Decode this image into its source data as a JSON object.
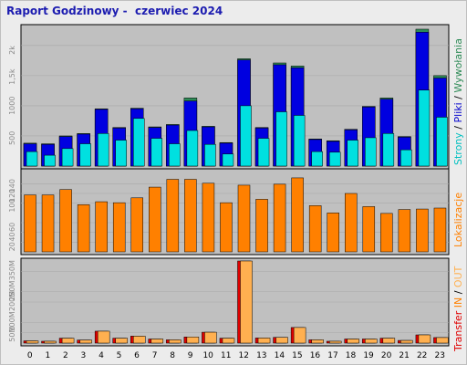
{
  "title": "Raport Godzinowy -  czerwiec 2024",
  "colors": {
    "pages": "#0000e0",
    "pages_top": "#2e8b57",
    "files": "#00e0e0",
    "visits": "#ff8000",
    "kbin": "#ffb050",
    "kbout": "#e00000",
    "panel": "#c0c0c0"
  },
  "labels": {
    "top_strony": "Strony",
    "top_sep1": " / ",
    "top_pliki": "Pliki",
    "top_sep2": " / ",
    "top_wywolania": "Wywołania",
    "mid": "Lokalizacje",
    "bot_transfer": "Transfer",
    "bot_in": " IN",
    "bot_sep": " / ",
    "bot_out": "OUT"
  },
  "chart_data": [
    {
      "type": "bar",
      "panel": "top",
      "categories": [
        "0",
        "1",
        "2",
        "3",
        "4",
        "5",
        "6",
        "7",
        "8",
        "9",
        "10",
        "11",
        "12",
        "13",
        "14",
        "15",
        "16",
        "17",
        "18",
        "19",
        "20",
        "21",
        "22",
        "23"
      ],
      "ylim": [
        0,
        2300
      ],
      "yticks": [
        "500",
        "1000",
        "1,5k",
        "2k"
      ],
      "ytick_values": [
        500,
        1000,
        1500,
        2000
      ],
      "series": [
        {
          "name": "Wywołania",
          "values": [
            380,
            370,
            500,
            540,
            950,
            640,
            960,
            650,
            690,
            1130,
            660,
            390,
            1780,
            640,
            1710,
            1660,
            450,
            420,
            610,
            990,
            1130,
            490,
            2270,
            1500
          ]
        },
        {
          "name": "Pliki",
          "values": [
            370,
            360,
            490,
            530,
            940,
            630,
            950,
            640,
            680,
            1080,
            650,
            380,
            1760,
            630,
            1680,
            1630,
            440,
            410,
            600,
            980,
            1110,
            480,
            2220,
            1460
          ]
        },
        {
          "name": "Strony",
          "values": [
            240,
            180,
            290,
            370,
            540,
            430,
            790,
            460,
            370,
            590,
            360,
            200,
            1000,
            460,
            900,
            840,
            240,
            230,
            430,
            470,
            540,
            270,
            1260,
            810
          ]
        }
      ]
    },
    {
      "type": "bar",
      "panel": "middle",
      "categories": [
        "0",
        "1",
        "2",
        "3",
        "4",
        "5",
        "6",
        "7",
        "8",
        "9",
        "10",
        "11",
        "12",
        "13",
        "14",
        "15",
        "16",
        "17",
        "18",
        "19",
        "20",
        "21",
        "22",
        "23"
      ],
      "ylim": [
        0,
        165
      ],
      "yticks": [
        "20",
        "40",
        "60",
        "100",
        "120",
        "140"
      ],
      "ytick_values": [
        20,
        40,
        60,
        100,
        120,
        140
      ],
      "series": [
        {
          "name": "Lokalizacje",
          "values": [
            117,
            117,
            128,
            97,
            103,
            101,
            111,
            133,
            149,
            149,
            141,
            101,
            137,
            108,
            139,
            152,
            95,
            80,
            120,
            93,
            79,
            87,
            88,
            90
          ]
        }
      ]
    },
    {
      "type": "bar",
      "panel": "bottom",
      "categories": [
        "0",
        "1",
        "2",
        "3",
        "4",
        "5",
        "6",
        "7",
        "8",
        "9",
        "10",
        "11",
        "12",
        "13",
        "14",
        "15",
        "16",
        "17",
        "18",
        "19",
        "20",
        "21",
        "22",
        "23"
      ],
      "ylim": [
        0,
        400
      ],
      "yticks": [
        "50M",
        "100M",
        "200M",
        "250M",
        "350M"
      ],
      "ytick_values": [
        50,
        100,
        200,
        250,
        350
      ],
      "series": [
        {
          "name": "IN",
          "values": [
            11,
            9,
            24,
            15,
            58,
            24,
            34,
            20,
            16,
            30,
            53,
            24,
            400,
            25,
            28,
            76,
            16,
            9,
            20,
            20,
            24,
            13,
            40,
            27
          ]
        },
        {
          "name": "OUT",
          "values": [
            11,
            9,
            24,
            15,
            58,
            24,
            34,
            20,
            16,
            30,
            53,
            24,
            400,
            25,
            28,
            76,
            16,
            9,
            20,
            20,
            24,
            13,
            40,
            27
          ]
        }
      ]
    }
  ]
}
